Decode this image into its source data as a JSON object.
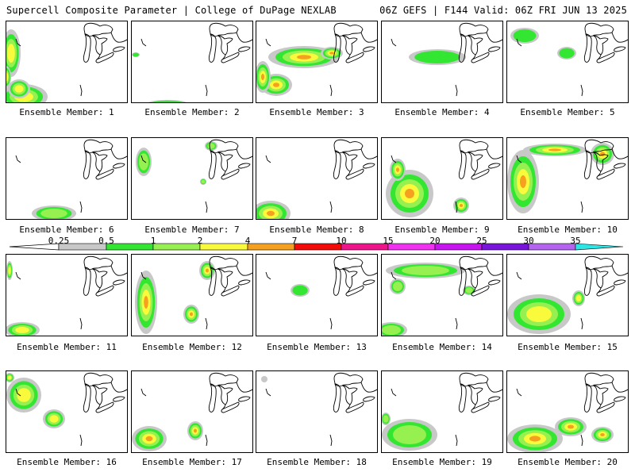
{
  "header": {
    "left_title": "Supercell Composite Parameter | College of DuPage NEXLAB",
    "right_title": "06Z GEFS | F144 Valid: 06Z FRI JUN 13 2025"
  },
  "colorbar": {
    "ticks": [
      "0.25",
      "0.5",
      "1",
      "2",
      "4",
      "7",
      "10",
      "15",
      "20",
      "25",
      "30",
      "35"
    ],
    "colors": [
      "#c8c8c8",
      "#32e632",
      "#96f050",
      "#fafa3c",
      "#f5a01e",
      "#f50a0a",
      "#f0148c",
      "#f032f0",
      "#c814f0",
      "#7814dc",
      "#b464f0",
      "#2ce6e6"
    ]
  },
  "panels": [
    {
      "label": "Ensemble Member: 1"
    },
    {
      "label": "Ensemble Member: 2"
    },
    {
      "label": "Ensemble Member: 3"
    },
    {
      "label": "Ensemble Member: 4"
    },
    {
      "label": "Ensemble Member: 5"
    },
    {
      "label": "Ensemble Member: 6"
    },
    {
      "label": "Ensemble Member: 7"
    },
    {
      "label": "Ensemble Member: 8"
    },
    {
      "label": "Ensemble Member: 9"
    },
    {
      "label": "Ensemble Member: 10"
    },
    {
      "label": "Ensemble Member: 11"
    },
    {
      "label": "Ensemble Member: 12"
    },
    {
      "label": "Ensemble Member: 13"
    },
    {
      "label": "Ensemble Member: 14"
    },
    {
      "label": "Ensemble Member: 15"
    },
    {
      "label": "Ensemble Member: 16"
    },
    {
      "label": "Ensemble Member: 17"
    },
    {
      "label": "Ensemble Member: 18"
    },
    {
      "label": "Ensemble Member: 19"
    },
    {
      "label": "Ensemble Member: 20"
    }
  ]
}
